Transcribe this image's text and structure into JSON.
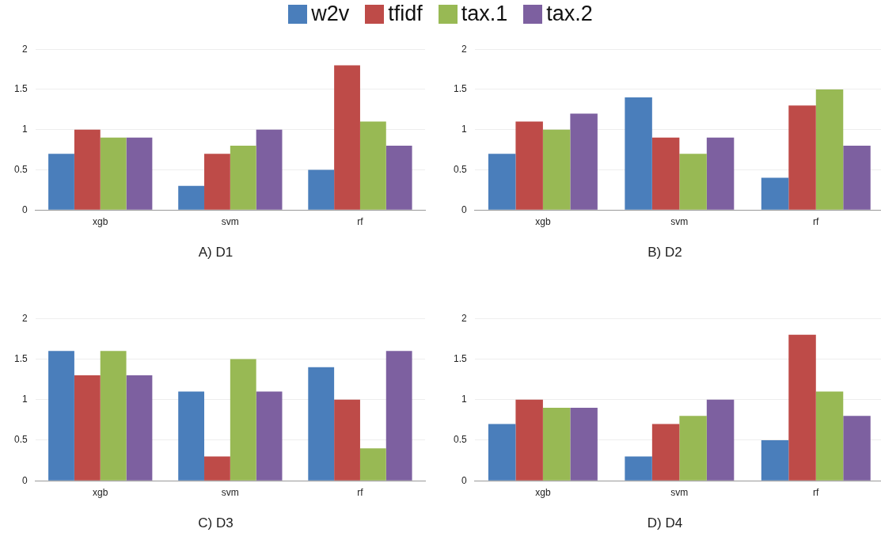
{
  "chart_data": [
    {
      "type": "bar",
      "title": "A) D1",
      "categories": [
        "xgb",
        "svm",
        "rf"
      ],
      "legend": "top",
      "grid": "y",
      "ylim": [
        0,
        2
      ],
      "yticks": [
        0,
        0.5,
        1,
        1.5,
        2
      ],
      "series": [
        {
          "name": "w2v",
          "color": "#4a7ebb",
          "values": [
            0.7,
            0.3,
            0.5
          ]
        },
        {
          "name": "tfidf",
          "color": "#be4b48",
          "values": [
            1.0,
            0.7,
            1.8
          ]
        },
        {
          "name": "tax.1",
          "color": "#98b954",
          "values": [
            0.9,
            0.8,
            1.1
          ]
        },
        {
          "name": "tax.2",
          "color": "#7d60a0",
          "values": [
            0.9,
            1.0,
            0.8
          ]
        }
      ]
    },
    {
      "type": "bar",
      "title": "B) D2",
      "categories": [
        "xgb",
        "svm",
        "rf"
      ],
      "grid": "y",
      "ylim": [
        0,
        2
      ],
      "yticks": [
        0,
        0.5,
        1,
        1.5,
        2
      ],
      "series": [
        {
          "color": "#4a7ebb",
          "values": [
            0.7,
            1.4,
            0.4
          ]
        },
        {
          "color": "#be4b48",
          "values": [
            1.1,
            0.9,
            1.3
          ]
        },
        {
          "color": "#98b954",
          "values": [
            1.0,
            0.7,
            1.5
          ]
        },
        {
          "color": "#7d60a0",
          "values": [
            1.2,
            0.9,
            0.8
          ]
        }
      ]
    },
    {
      "type": "bar",
      "title": "C) D3",
      "categories": [
        "xgb",
        "svm",
        "rf"
      ],
      "grid": "y",
      "ylim": [
        0,
        2
      ],
      "yticks": [
        0,
        0.5,
        1,
        1.5,
        2
      ],
      "series": [
        {
          "color": "#4a7ebb",
          "values": [
            1.6,
            1.1,
            1.4
          ]
        },
        {
          "color": "#be4b48",
          "values": [
            1.3,
            0.3,
            1.0
          ]
        },
        {
          "color": "#98b954",
          "values": [
            1.6,
            1.5,
            0.4
          ]
        },
        {
          "color": "#7d60a0",
          "values": [
            1.3,
            1.1,
            1.6
          ]
        }
      ]
    },
    {
      "type": "bar",
      "title": "D) D4",
      "categories": [
        "xgb",
        "svm",
        "rf"
      ],
      "grid": "y",
      "ylim": [
        0,
        2
      ],
      "yticks": [
        0,
        0.5,
        1,
        1.5,
        2
      ],
      "series": [
        {
          "color": "#4a7ebb",
          "values": [
            0.7,
            0.3,
            0.5
          ]
        },
        {
          "color": "#be4b48",
          "values": [
            1.0,
            0.7,
            1.8
          ]
        },
        {
          "color": "#98b954",
          "values": [
            0.9,
            0.8,
            1.1
          ]
        },
        {
          "color": "#7d60a0",
          "values": [
            0.9,
            1.0,
            0.8
          ]
        }
      ]
    }
  ]
}
